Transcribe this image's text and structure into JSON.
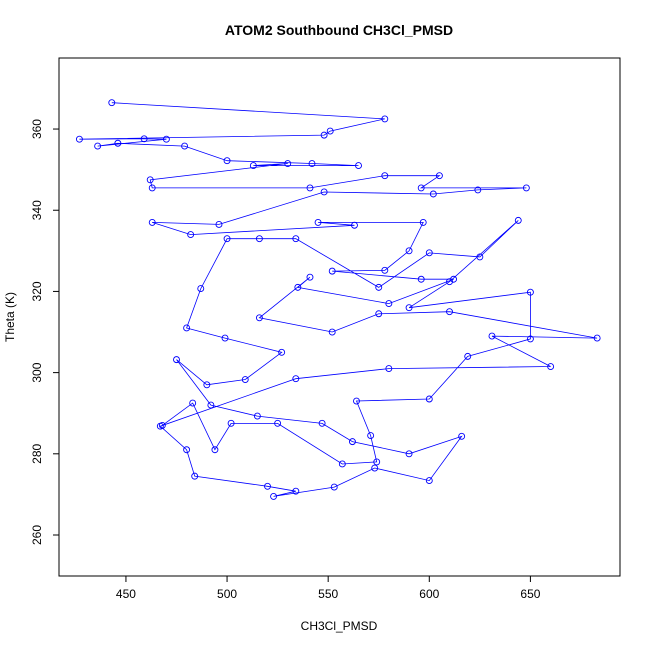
{
  "chart_data": {
    "type": "line",
    "marker": "open-circle",
    "color": "#0000ff",
    "title": "ATOM2 Southbound CH3Cl_PMSD",
    "x_label": "CH3Cl_PMSD",
    "y_label": "Theta (K)",
    "xlim": [
      416.9,
      694.3
    ],
    "ylim": [
      249.9,
      377.5
    ],
    "xticks": [
      450,
      500,
      550,
      600,
      650
    ],
    "yticks": [
      260,
      280,
      300,
      320,
      340,
      360
    ],
    "x": [
      443,
      578,
      551,
      548,
      427,
      459,
      470,
      436,
      446,
      479,
      500,
      542,
      565,
      513,
      530,
      462,
      463,
      541,
      578,
      605,
      596,
      648,
      624,
      602,
      548,
      496,
      463,
      482,
      563,
      545,
      597,
      590,
      578,
      552,
      596,
      612,
      580,
      535,
      541,
      516,
      552,
      575,
      610,
      683,
      631,
      660,
      580,
      534,
      467,
      480,
      484,
      520,
      534,
      523,
      553,
      573,
      600,
      616,
      590,
      562,
      547,
      515,
      492,
      475,
      490,
      509,
      527,
      499,
      480,
      487,
      500,
      516,
      534,
      575,
      600,
      625,
      644,
      610,
      590,
      650,
      650,
      619,
      600,
      564,
      571,
      574,
      557,
      525,
      502,
      494,
      483,
      468
    ],
    "series": [
      {
        "name": "Theta",
        "values": [
          366.5,
          362.5,
          359.5,
          358.5,
          357.5,
          357.6,
          357.5,
          355.8,
          356.5,
          355.8,
          352.2,
          351.5,
          351,
          351,
          351.5,
          347.5,
          345.5,
          345.5,
          348.5,
          348.5,
          345.5,
          345.5,
          345,
          344,
          344.5,
          336.5,
          337,
          334,
          336.3,
          337,
          337,
          330,
          325.2,
          325,
          323,
          323,
          317,
          321,
          323.5,
          313.5,
          310,
          314.5,
          315,
          308.5,
          309,
          301.5,
          301,
          298.5,
          286.8,
          281,
          274.5,
          272,
          270.8,
          269.5,
          271.8,
          276.5,
          273.4,
          284.3,
          280,
          283,
          287.5,
          289.3,
          292,
          303.2,
          297,
          298.3,
          305,
          308.5,
          311,
          320.7,
          333,
          333,
          333,
          321,
          329.5,
          328.5,
          337.5,
          322.4,
          316,
          319.8,
          308.3,
          304,
          293.5,
          293,
          284.5,
          278,
          277.5,
          287.5,
          287.5,
          281,
          292.5,
          287
        ]
      }
    ]
  }
}
